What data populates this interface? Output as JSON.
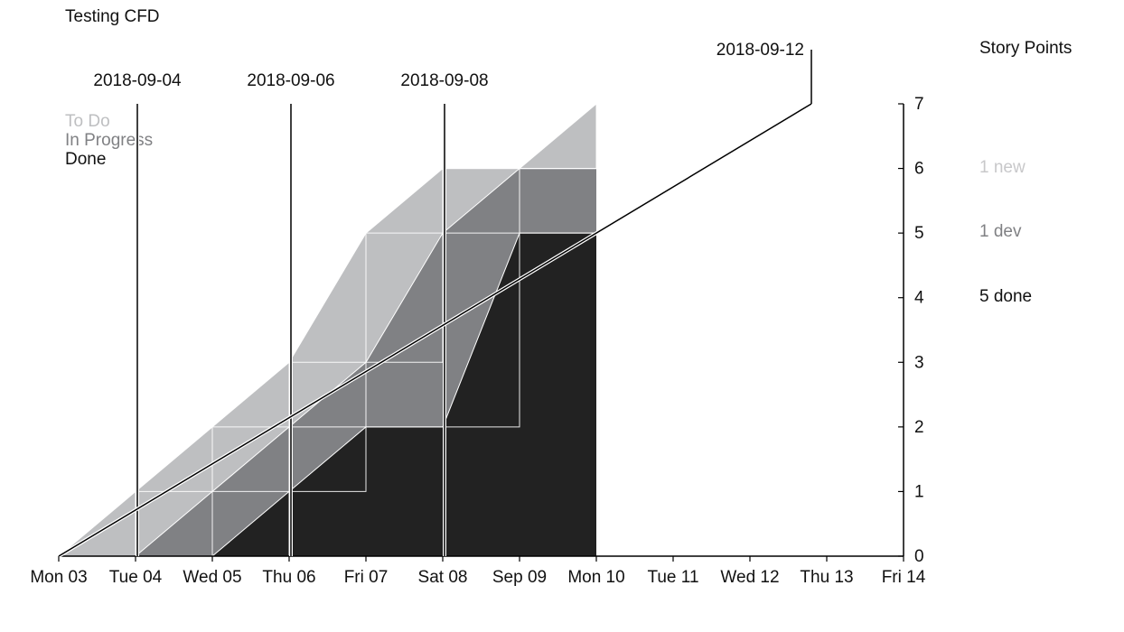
{
  "chart_data": {
    "type": "area",
    "title": "Testing CFD",
    "x_tick_labels": [
      "Mon 03",
      "Tue 04",
      "Wed 05",
      "Thu 06",
      "Fri 07",
      "Sat 08",
      "Sep 09",
      "Mon 10",
      "Tue 11",
      "Wed 12",
      "Thu 13",
      "Fri 14"
    ],
    "y_ticks": [
      0,
      1,
      2,
      3,
      4,
      5,
      6,
      7
    ],
    "ylim": [
      0,
      7
    ],
    "y_axis_position": "right",
    "right_axis_title": "Story Points",
    "colors": {
      "todo": "#bebfc1",
      "in_progress": "#808184",
      "done": "#222222"
    },
    "series": [
      {
        "name": "To Do",
        "key": "todo",
        "values": [
          0,
          1,
          2,
          3,
          5,
          6,
          6,
          7
        ]
      },
      {
        "name": "In Progress",
        "key": "in_progress",
        "values": [
          0,
          0,
          1,
          2,
          3,
          5,
          6,
          6
        ]
      },
      {
        "name": "Done",
        "key": "done",
        "values": [
          0,
          0,
          0,
          1,
          2,
          2,
          5,
          5
        ]
      }
    ],
    "markers": [
      {
        "label": "2018-09-04",
        "x_index": 1
      },
      {
        "label": "2018-09-06",
        "x_index": 3
      },
      {
        "label": "2018-09-08",
        "x_index": 5
      }
    ],
    "projection": {
      "label": "2018-09-12",
      "from": [
        0,
        0
      ],
      "to": [
        9.8,
        7
      ]
    },
    "summary": [
      {
        "text": "1 new",
        "key": "todo",
        "value": 6
      },
      {
        "text": "1 dev",
        "key": "in_progress",
        "value": 5
      },
      {
        "text": "5 done",
        "key": "done",
        "value": 4
      }
    ]
  }
}
